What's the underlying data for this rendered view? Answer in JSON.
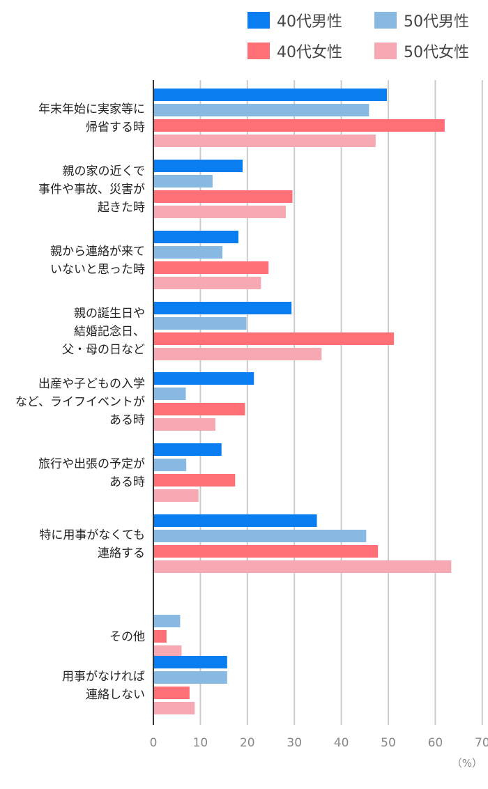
{
  "chart_data": {
    "type": "bar",
    "orientation": "horizontal",
    "categories": [
      [
        "年末年始に実家等に",
        "帰省する時"
      ],
      [
        "親の家の近くで",
        "事件や事故、災害が",
        "起きた時"
      ],
      [
        "親から連絡が来て",
        "いないと思った時"
      ],
      [
        "親の誕生日や",
        "結婚記念日、",
        "父・母の日など"
      ],
      [
        "出産や子どもの入学",
        "など、ライフイベントが",
        "ある時"
      ],
      [
        "旅行や出張の予定が",
        "ある時"
      ],
      [
        "特に用事がなくても",
        "連絡する"
      ],
      [
        "その他"
      ],
      [
        "用事がなければ",
        "連絡しない"
      ]
    ],
    "series": [
      {
        "name": "40代男性",
        "color": "#0a7ef0",
        "values": [
          49.7,
          19.0,
          18.1,
          29.4,
          21.4,
          14.5,
          34.8,
          null,
          15.7
        ]
      },
      {
        "name": "50代男性",
        "color": "#88b9e2",
        "values": [
          45.9,
          12.6,
          14.7,
          19.8,
          6.9,
          7.0,
          45.3,
          5.7,
          15.7
        ]
      },
      {
        "name": "40代女性",
        "color": "#ff6f76",
        "values": [
          62.0,
          29.6,
          24.5,
          51.2,
          19.5,
          17.4,
          47.8,
          2.8,
          7.7
        ]
      },
      {
        "name": "50代女性",
        "color": "#f6a9b3",
        "values": [
          47.3,
          28.2,
          22.9,
          35.8,
          13.2,
          9.6,
          63.4,
          6.0,
          8.8
        ]
      }
    ],
    "x_ticks": [
      0,
      10,
      20,
      30,
      40,
      50,
      60,
      70
    ],
    "xlim": [
      0,
      70
    ],
    "unit": "（%）",
    "grid": "vertical",
    "legend_position": "top-right",
    "gridline_color": "#cccccc",
    "axis_color": "#333333"
  }
}
